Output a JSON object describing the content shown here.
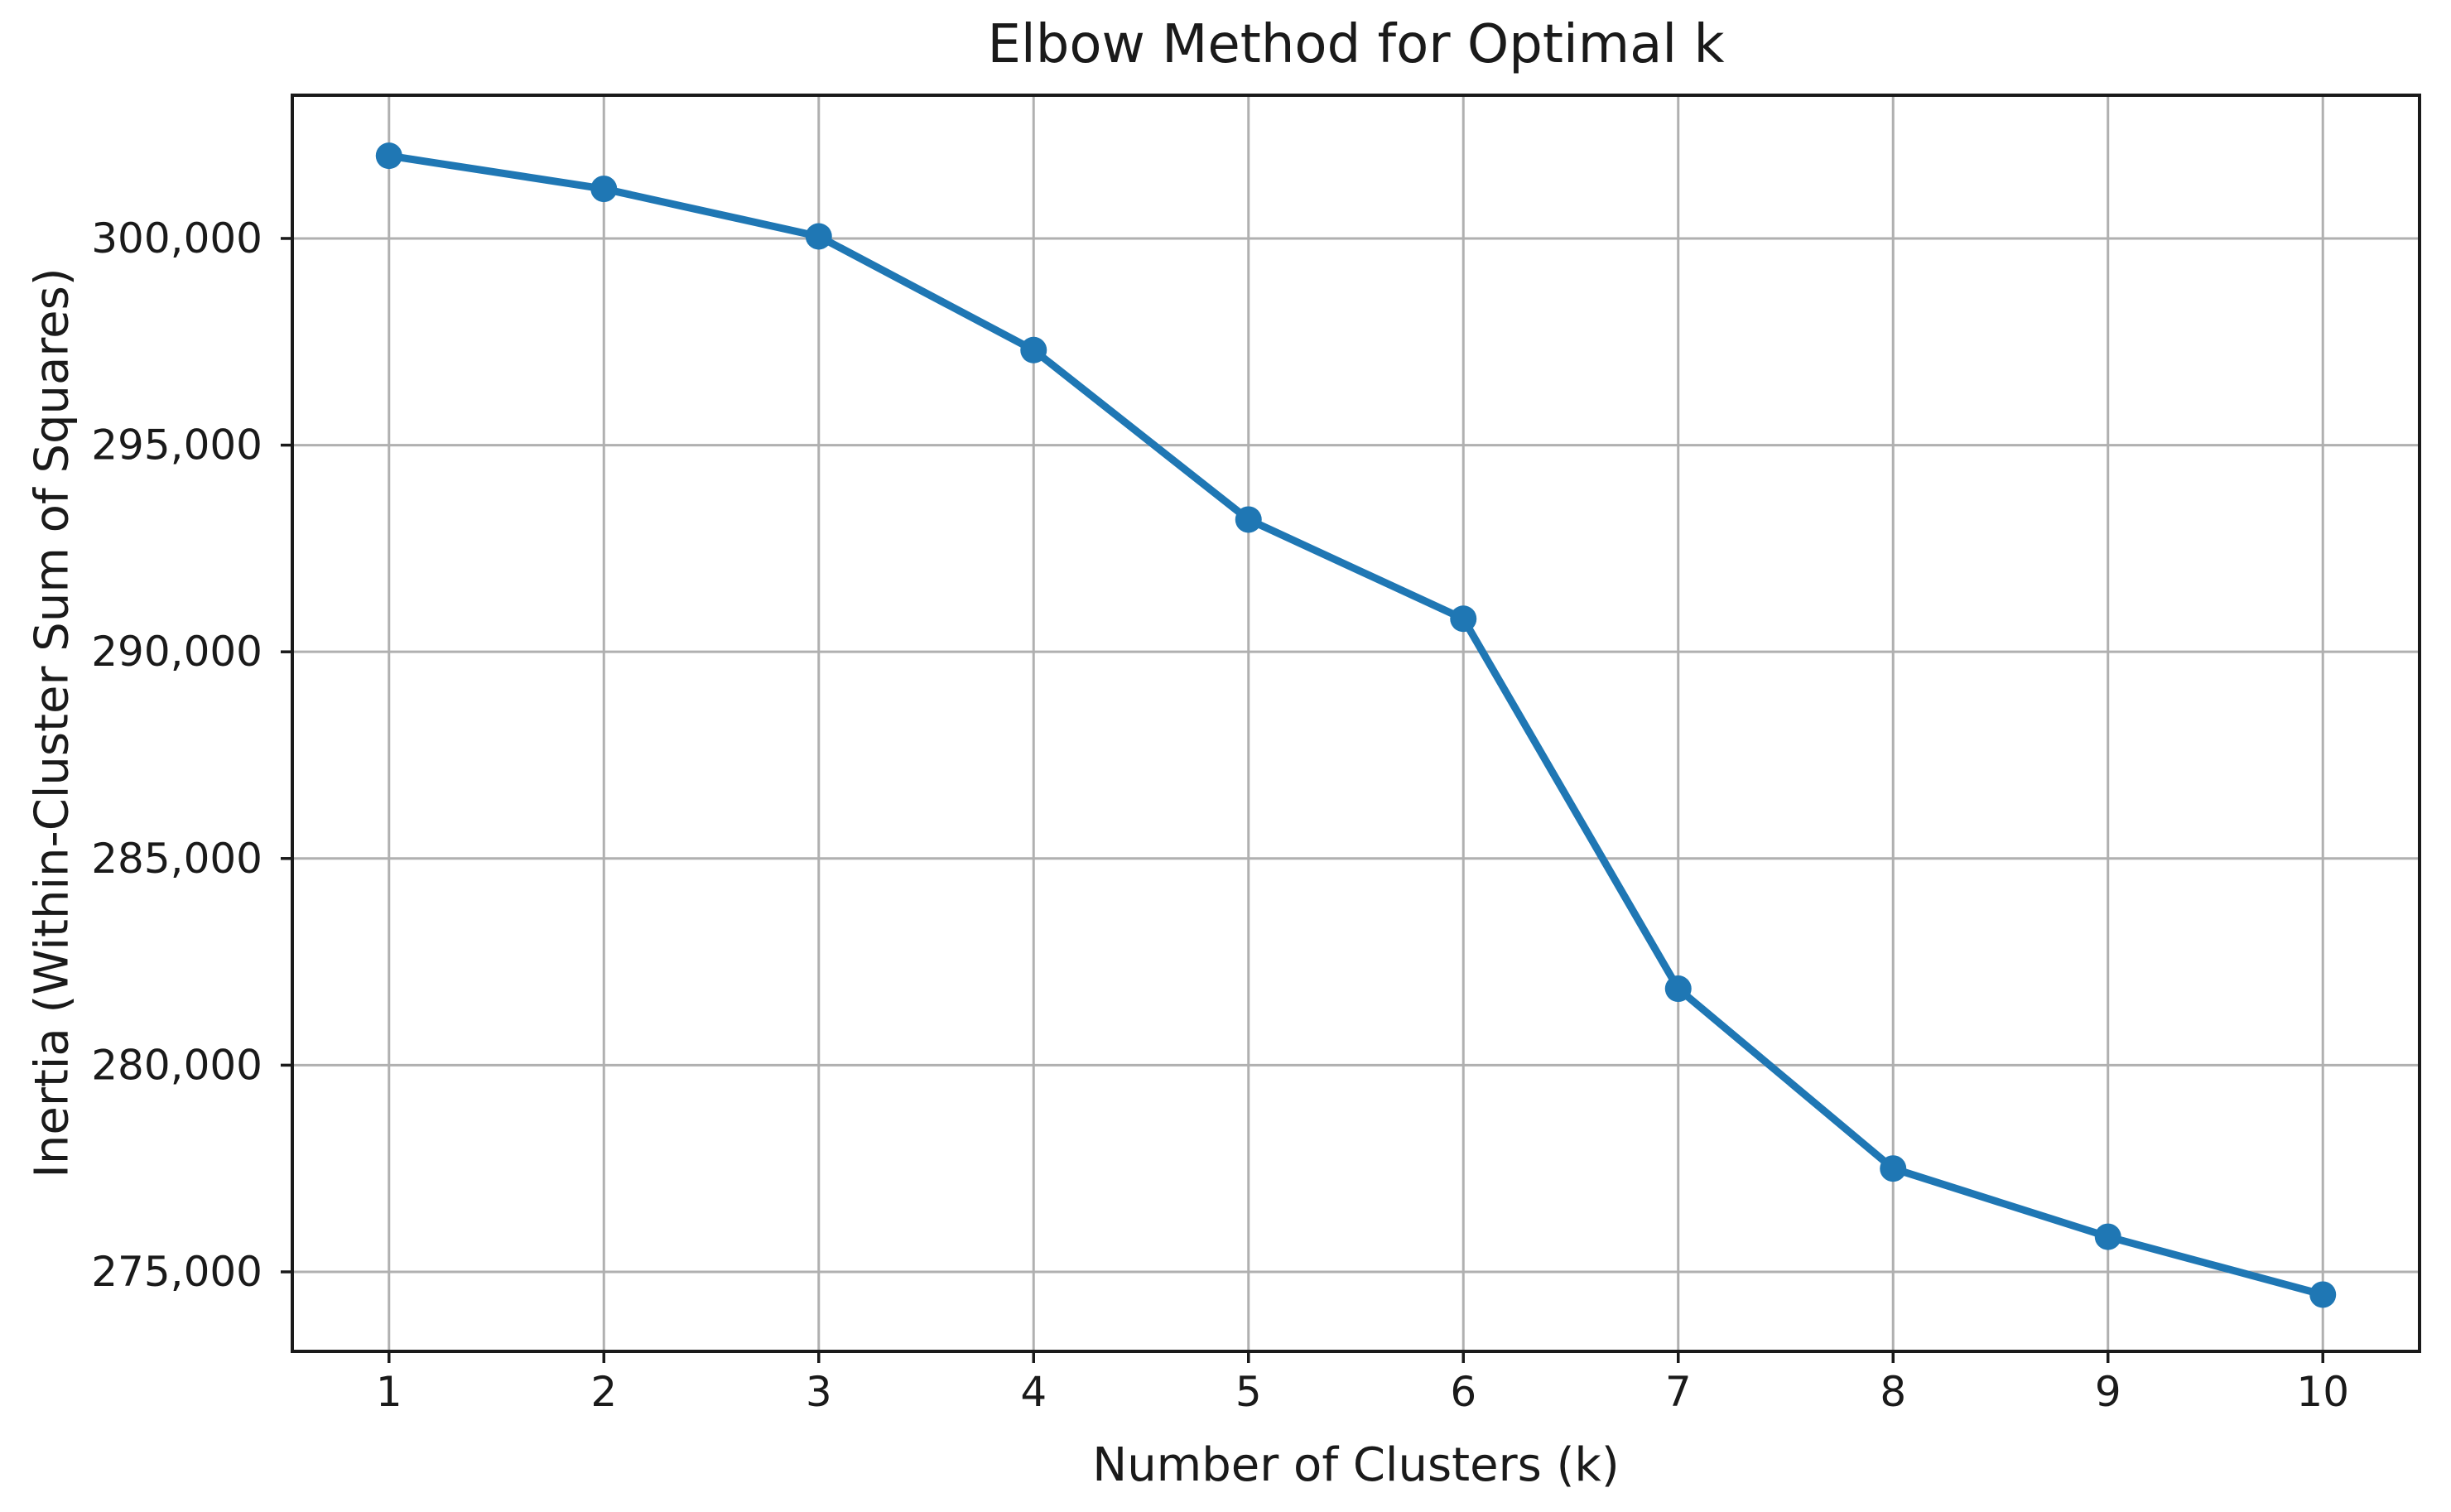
{
  "figure": {
    "background": "#ffffff"
  },
  "chart_data": {
    "type": "line",
    "title": "Elbow Method for Optimal k",
    "xlabel": "Number of Clusters (k)",
    "ylabel": "Inertia (Within-Cluster Sum of Squares)",
    "series": [
      {
        "name": "inertia",
        "x": [
          1,
          2,
          3,
          4,
          5,
          6,
          7,
          8,
          9,
          10
        ],
        "values": [
          302000,
          301200,
          300050,
          297300,
          293200,
          290800,
          281850,
          277500,
          275850,
          274450
        ]
      }
    ],
    "xlim": [
      0.55,
      10.45
    ],
    "ylim": [
      273077,
      303465
    ],
    "xticks": {
      "values": [
        1,
        2,
        3,
        4,
        5,
        6,
        7,
        8,
        9,
        10
      ],
      "labels": [
        "1",
        "2",
        "3",
        "4",
        "5",
        "6",
        "7",
        "8",
        "9",
        "10"
      ]
    },
    "yticks": {
      "values": [
        275000,
        280000,
        285000,
        290000,
        295000,
        300000
      ],
      "labels": [
        "275,000",
        "280,000",
        "285,000",
        "290,000",
        "295,000",
        "300,000"
      ]
    },
    "grid": true,
    "legend": "none",
    "marker": "circle",
    "colors": {
      "line": "#1f77b4",
      "marker": "#1f77b4",
      "grid": "#b0b0b0",
      "spine": "#1a1a1a",
      "tick": "#1a1a1a",
      "text": "#1a1a1a",
      "background": "#ffffff"
    }
  }
}
